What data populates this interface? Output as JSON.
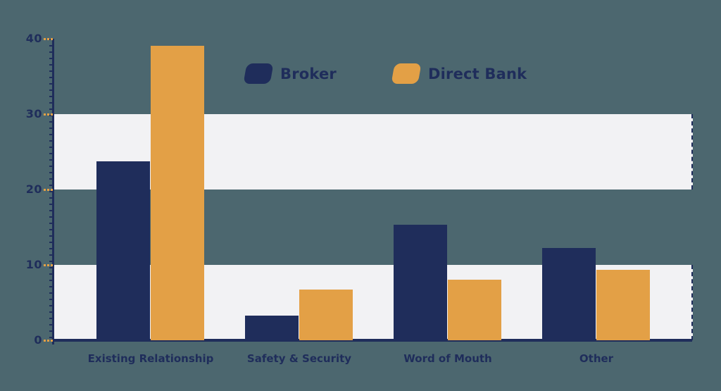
{
  "chart_data": {
    "type": "bar",
    "title": "",
    "categories": [
      "Existing Relationship",
      "Safety & Security",
      "Word of Mouth",
      "Other"
    ],
    "series": [
      {
        "name": "Broker",
        "color": "#1f2d5b",
        "values": [
          23.7,
          3.3,
          15.3,
          12.2
        ]
      },
      {
        "name": "Direct Bank",
        "color": "#e3a046",
        "values": [
          39.1,
          6.7,
          8.0,
          9.3
        ]
      }
    ],
    "xlabel": "",
    "ylabel": "",
    "y_ticks": [
      0,
      10,
      20,
      30,
      40
    ],
    "y_tick_labels": [
      "0",
      "10",
      "20",
      "30",
      "40"
    ],
    "ylim": [
      0,
      40
    ],
    "grid": "horizontal-bands",
    "grid_bands": [
      [
        0,
        10
      ],
      [
        20,
        30
      ]
    ],
    "legend_position": "top-center",
    "colors": {
      "background": "#4c676f",
      "band_fill": "#f2f2f4",
      "axis": "#1f2d5b",
      "tick_dash_orange": "#e3a046",
      "text": "#1f2d5b"
    }
  }
}
